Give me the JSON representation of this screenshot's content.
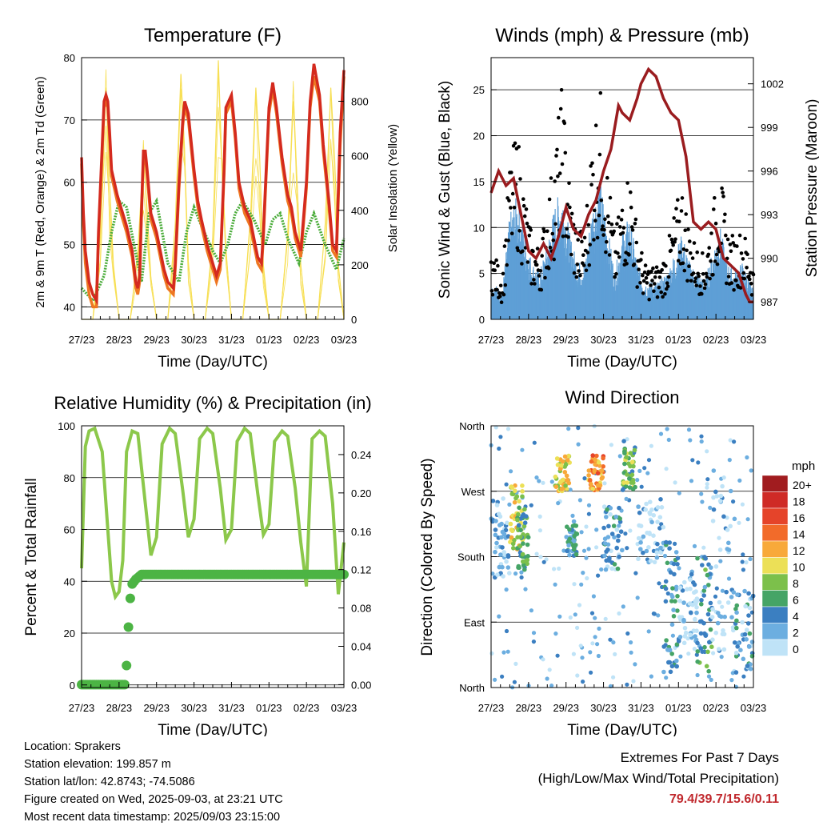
{
  "colors": {
    "temp2m": "#ee7722",
    "temp9m": "#d42a1e",
    "dewpoint": "#4cad3c",
    "solar": "#f7df55",
    "wind": "#5e9fd6",
    "gust": "#000000",
    "pressure": "#9a1c1f",
    "rh": "#8cc84b",
    "precip": "#4cb444",
    "extremes": "#c0282d"
  },
  "x_ticks": [
    "27/23",
    "28/23",
    "29/23",
    "30/23",
    "31/23",
    "01/23",
    "02/23",
    "03/23"
  ],
  "chart_data": [
    {
      "type": "line",
      "title": "Temperature (F)",
      "xlabel": "Time (Day/UTC)",
      "ylabel": "2m & 9m T (Red, Orange) & 2m Td (Green)",
      "ylabel_right": "Solar Insolation (Yellow)",
      "ylim": [
        38,
        80
      ],
      "yticks": [
        40,
        50,
        60,
        70,
        80
      ],
      "ylim_right": [
        0,
        960
      ],
      "yticks_right": [
        0,
        200,
        400,
        600,
        800
      ],
      "grid": true,
      "x_days": [
        0,
        1,
        2,
        3,
        4,
        5,
        6,
        7
      ],
      "series": [
        {
          "color_key": "temp9m",
          "x": [
            0,
            0.05,
            0.1,
            0.2,
            0.3,
            0.4,
            0.45,
            0.55,
            0.6,
            0.65,
            0.7,
            0.75,
            0.8,
            0.95,
            1.1,
            1.2,
            1.35,
            1.45,
            1.5,
            1.55,
            1.6,
            1.65,
            1.7,
            1.75,
            1.85,
            2.0,
            2.1,
            2.2,
            2.3,
            2.45,
            2.5,
            2.6,
            2.7,
            2.75,
            2.85,
            3.0,
            3.1,
            3.2,
            3.35,
            3.5,
            3.6,
            3.7,
            3.8,
            3.85,
            4.0,
            4.1,
            4.2,
            4.35,
            4.5,
            4.6,
            4.7,
            4.8,
            4.85,
            5.0,
            5.1,
            5.2,
            5.35,
            5.5,
            5.6,
            5.7,
            5.8,
            5.85,
            6.0,
            6.1,
            6.2,
            6.35,
            6.45,
            6.6,
            6.7,
            6.8,
            6.9,
            7.0
          ],
          "y": [
            64,
            55,
            49,
            44,
            42,
            41,
            52,
            66,
            73,
            74,
            73,
            68,
            62,
            58,
            55,
            53,
            49,
            44,
            43,
            45,
            56,
            65,
            65,
            62,
            55,
            52,
            49,
            46,
            44,
            43,
            47,
            60,
            70,
            73,
            71,
            62,
            57,
            54,
            50,
            47,
            45,
            47,
            62,
            72,
            74,
            68,
            60,
            56,
            54,
            51,
            48,
            47,
            52,
            72,
            76,
            72,
            64,
            58,
            56,
            52,
            50,
            49,
            60,
            73,
            79,
            74,
            66,
            57,
            50,
            49,
            68,
            78
          ]
        },
        {
          "color_key": "temp2m",
          "x": [
            0,
            0.05,
            0.1,
            0.2,
            0.3,
            0.4,
            0.45,
            0.55,
            0.6,
            0.65,
            0.7,
            0.75,
            0.8,
            0.95,
            1.1,
            1.2,
            1.35,
            1.45,
            1.5,
            1.55,
            1.6,
            1.65,
            1.7,
            1.75,
            1.85,
            2.0,
            2.1,
            2.2,
            2.3,
            2.45,
            2.5,
            2.6,
            2.7,
            2.75,
            2.85,
            3.0,
            3.1,
            3.2,
            3.35,
            3.5,
            3.6,
            3.7,
            3.8,
            3.85,
            4.0,
            4.1,
            4.2,
            4.35,
            4.5,
            4.6,
            4.7,
            4.8,
            4.85,
            5.0,
            5.1,
            5.2,
            5.35,
            5.5,
            5.6,
            5.7,
            5.8,
            5.85,
            6.0,
            6.1,
            6.2,
            6.35,
            6.45,
            6.6,
            6.7,
            6.8,
            6.9,
            7.0
          ],
          "y": [
            63,
            53,
            47,
            42,
            40,
            40,
            51,
            65,
            72,
            73,
            72,
            67,
            61,
            57,
            54,
            52,
            48,
            43,
            42,
            44,
            55,
            64,
            64,
            61,
            54,
            51,
            48,
            45,
            43,
            42,
            46,
            59,
            69,
            72,
            70,
            61,
            56,
            53,
            49,
            46,
            44,
            46,
            61,
            71,
            73,
            67,
            59,
            55,
            53,
            50,
            47,
            46,
            51,
            71,
            75,
            71,
            63,
            57,
            55,
            51,
            49,
            48,
            59,
            72,
            77,
            73,
            65,
            56,
            49,
            48,
            66,
            77
          ]
        },
        {
          "color_key": "dewpoint",
          "x": [
            0,
            0.3,
            0.6,
            0.8,
            1.0,
            1.2,
            1.4,
            1.6,
            1.8,
            2.0,
            2.3,
            2.6,
            2.8,
            3.0,
            3.2,
            3.5,
            3.7,
            3.9,
            4.1,
            4.3,
            4.6,
            4.9,
            5.1,
            5.3,
            5.5,
            5.8,
            6.0,
            6.2,
            6.5,
            6.8,
            7.0
          ],
          "y": [
            43,
            41,
            45,
            52,
            57,
            56,
            50,
            44,
            55,
            57,
            47,
            44,
            52,
            56,
            53,
            49,
            47,
            50,
            55,
            57,
            54,
            50,
            54,
            55,
            51,
            47,
            52,
            55,
            50,
            46,
            51
          ]
        },
        {
          "color_key": "solar",
          "axis": "right",
          "x": [
            0,
            0.3,
            0.5,
            0.65,
            0.75,
            0.85,
            1.0,
            1.3,
            1.5,
            1.65,
            1.75,
            1.85,
            2.0,
            2.3,
            2.5,
            2.65,
            2.75,
            2.85,
            3.0,
            3.3,
            3.5,
            3.65,
            3.75,
            3.85,
            4.0,
            4.3,
            4.5,
            4.65,
            4.75,
            4.85,
            5.0,
            5.3,
            5.5,
            5.65,
            5.75,
            5.85,
            6.0,
            6.3,
            6.5,
            6.65,
            6.75,
            6.85,
            7.0
          ],
          "y": [
            0,
            0,
            300,
            850,
            500,
            200,
            0,
            0,
            250,
            600,
            400,
            150,
            0,
            0,
            350,
            900,
            600,
            200,
            0,
            0,
            300,
            950,
            550,
            250,
            0,
            0,
            350,
            850,
            600,
            200,
            0,
            0,
            300,
            800,
            500,
            200,
            0,
            0,
            350,
            850,
            600,
            200,
            0
          ]
        }
      ]
    },
    {
      "type": "scatter",
      "title": "Winds (mph) & Pressure (mb)",
      "xlabel": "Time (Day/UTC)",
      "ylabel": "Sonic Wind & Gust (Blue, Black)",
      "ylabel_right": "Station Pressure (Maroon)",
      "ylim": [
        0,
        28.5
      ],
      "yticks": [
        0,
        5,
        10,
        15,
        20,
        25
      ],
      "ylim_right": [
        985.8,
        1003.8
      ],
      "yticks_right": [
        987,
        990,
        993,
        996,
        999,
        1002
      ],
      "grid": true,
      "wind_envelope": {
        "x": [
          0,
          0.3,
          0.5,
          0.7,
          0.9,
          1.1,
          1.3,
          1.5,
          1.7,
          1.9,
          2.1,
          2.3,
          2.5,
          2.7,
          2.9,
          3.1,
          3.3,
          3.5,
          3.7,
          3.9,
          4.1,
          4.3,
          4.5,
          4.7,
          4.9,
          5.1,
          5.3,
          5.5,
          5.7,
          5.9,
          6.1,
          6.3,
          6.5,
          6.7,
          6.9,
          7.0
        ],
        "y": [
          4,
          3,
          11,
          13,
          9,
          6,
          5,
          8,
          12,
          14,
          9,
          6,
          6,
          12,
          15,
          10,
          5,
          9,
          11,
          6,
          4,
          4,
          4,
          5,
          7,
          9,
          6,
          5,
          4,
          7,
          10,
          6,
          5,
          6,
          4,
          3
        ]
      },
      "gust_envelope": {
        "x": [
          0,
          0.3,
          0.5,
          0.7,
          0.9,
          1.1,
          1.3,
          1.5,
          1.7,
          1.9,
          2.1,
          2.3,
          2.5,
          2.7,
          2.9,
          3.1,
          3.3,
          3.5,
          3.7,
          3.9,
          4.1,
          4.3,
          4.5,
          4.7,
          4.9,
          5.1,
          5.3,
          5.5,
          5.7,
          5.9,
          6.1,
          6.3,
          6.5,
          6.7,
          6.9,
          7.0
        ],
        "y": [
          8,
          5,
          17,
          21,
          14,
          9,
          8,
          13,
          19,
          26,
          15,
          10,
          10,
          21,
          26,
          17,
          9,
          14,
          17,
          10,
          6,
          6,
          6,
          8,
          12,
          15,
          10,
          8,
          7,
          12,
          17,
          10,
          9,
          10,
          8,
          6
        ]
      },
      "pressure": {
        "x": [
          0,
          0.2,
          0.4,
          0.6,
          0.8,
          1.0,
          1.2,
          1.4,
          1.6,
          1.8,
          2.0,
          2.2,
          2.4,
          2.6,
          2.8,
          3.0,
          3.2,
          3.4,
          3.5,
          3.7,
          3.9,
          4.0,
          4.2,
          4.4,
          4.6,
          4.8,
          5.0,
          5.2,
          5.4,
          5.6,
          5.8,
          6.0,
          6.2,
          6.4,
          6.6,
          6.8,
          6.9,
          7.0
        ],
        "y": [
          994.5,
          996,
          995,
          995.5,
          993,
          990.5,
          990,
          991,
          990,
          991.5,
          993.5,
          992,
          991.5,
          993,
          994,
          996,
          997.5,
          1000.5,
          1000,
          999.5,
          1001,
          1002,
          1003,
          1002.5,
          1001,
          1000,
          999.5,
          997,
          992.5,
          992,
          992.5,
          992,
          990,
          989.5,
          989,
          987.5,
          987,
          987
        ]
      }
    },
    {
      "type": "line",
      "title": "Relative Humidity (%) & Precipitation (in)",
      "xlabel": "Time (Day/UTC)",
      "ylabel": "Percent & Total Rainfall",
      "ylim": [
        -1,
        100
      ],
      "yticks": [
        0,
        20,
        40,
        60,
        80,
        100
      ],
      "ylim_right": [
        -0.003,
        0.27
      ],
      "yticks_right": [
        "0.00",
        "0.04",
        "0.08",
        "0.12",
        "0.16",
        "0.20",
        "0.24"
      ],
      "grid": true,
      "rh": {
        "x": [
          0,
          0.1,
          0.2,
          0.35,
          0.55,
          0.7,
          0.8,
          0.9,
          1.0,
          1.1,
          1.2,
          1.35,
          1.5,
          1.7,
          1.85,
          2.0,
          2.15,
          2.35,
          2.5,
          2.7,
          2.85,
          3.0,
          3.15,
          3.35,
          3.5,
          3.7,
          3.85,
          4.0,
          4.15,
          4.35,
          4.5,
          4.7,
          4.85,
          5.0,
          5.15,
          5.35,
          5.5,
          5.7,
          5.85,
          6.0,
          6.15,
          6.35,
          6.5,
          6.7,
          6.85,
          7.0
        ],
        "y": [
          45,
          92,
          98,
          99,
          90,
          60,
          40,
          34,
          36,
          48,
          90,
          98,
          97,
          70,
          50,
          57,
          93,
          99,
          97,
          75,
          57,
          64,
          95,
          99,
          97,
          76,
          56,
          60,
          94,
          99,
          97,
          74,
          58,
          62,
          94,
          98,
          96,
          76,
          55,
          38,
          95,
          98,
          96,
          70,
          35,
          55
        ]
      },
      "precip": {
        "x": [
          0,
          0.5,
          1.0,
          1.15,
          1.2,
          1.25,
          1.3,
          1.35,
          1.45,
          1.6,
          2.0,
          3.0,
          4.0,
          5.0,
          6.0,
          7.0
        ],
        "y": [
          0,
          0,
          0,
          0,
          0.02,
          0.06,
          0.09,
          0.105,
          0.11,
          0.115,
          0.115,
          0.115,
          0.115,
          0.115,
          0.115,
          0.115
        ]
      }
    },
    {
      "type": "scatter",
      "title": "Wind Direction",
      "xlabel": "Time (Day/UTC)",
      "ylabel": "Direction (Colored By Speed)",
      "ylim": [
        0,
        360
      ],
      "yticks": [
        "North",
        "East",
        "South",
        "West",
        "North"
      ],
      "grid": true,
      "legend": {
        "title": "mph",
        "labels": [
          "20+",
          "18",
          "16",
          "14",
          "12",
          "10",
          "8",
          "6",
          "4",
          "2",
          "0"
        ],
        "colors": [
          "#a11c1f",
          "#cf2a26",
          "#e5442a",
          "#f26b2a",
          "#f8a93a",
          "#ece057",
          "#7cc04b",
          "#45a466",
          "#3b7fc1",
          "#6caee0",
          "#bfe3f7"
        ],
        "placement": "right"
      },
      "clusters": [
        {
          "x": [
            0.0,
            0.5
          ],
          "y": [
            150,
            260
          ],
          "speed": 2
        },
        {
          "x": [
            0.5,
            0.85
          ],
          "y": [
            190,
            280
          ],
          "speed": 9
        },
        {
          "x": [
            0.7,
            1.0
          ],
          "y": [
            160,
            250
          ],
          "speed": 6
        },
        {
          "x": [
            1.7,
            2.1
          ],
          "y": [
            270,
            320
          ],
          "speed": 10
        },
        {
          "x": [
            2.0,
            2.3
          ],
          "y": [
            180,
            230
          ],
          "speed": 4
        },
        {
          "x": [
            2.6,
            3.0
          ],
          "y": [
            270,
            320
          ],
          "speed": 13
        },
        {
          "x": [
            3.0,
            3.5
          ],
          "y": [
            160,
            250
          ],
          "speed": 3
        },
        {
          "x": [
            3.5,
            3.85
          ],
          "y": [
            270,
            340
          ],
          "speed": 7
        },
        {
          "x": [
            3.9,
            4.6
          ],
          "y": [
            170,
            260
          ],
          "speed": 1
        },
        {
          "x": [
            4.6,
            5.0
          ],
          "y": [
            20,
            200
          ],
          "speed": 4
        },
        {
          "x": [
            5.0,
            5.5
          ],
          "y": [
            60,
            160
          ],
          "speed": 1
        },
        {
          "x": [
            5.5,
            5.9
          ],
          "y": [
            20,
            180
          ],
          "speed": 5
        },
        {
          "x": [
            5.9,
            6.5
          ],
          "y": [
            50,
            300
          ],
          "speed": 1
        },
        {
          "x": [
            6.5,
            7.0
          ],
          "y": [
            20,
            140
          ],
          "speed": 3
        }
      ]
    }
  ],
  "footer": {
    "location": "Location: Sprakers",
    "elevation": "Station elevation: 199.857 m",
    "latlon": "Station lat/lon: 42.8743; -74.5086",
    "created": "Figure created on Wed, 2025-09-03, at 23:21 UTC",
    "timestamp": "Most recent data timestamp: 2025/09/03 23:15:00",
    "extremes_title": "Extremes For Past 7 Days",
    "extremes_subtitle": "(High/Low/Max Wind/Total Precipitation)",
    "extremes_values": "79.4/39.7/15.6/0.11"
  }
}
